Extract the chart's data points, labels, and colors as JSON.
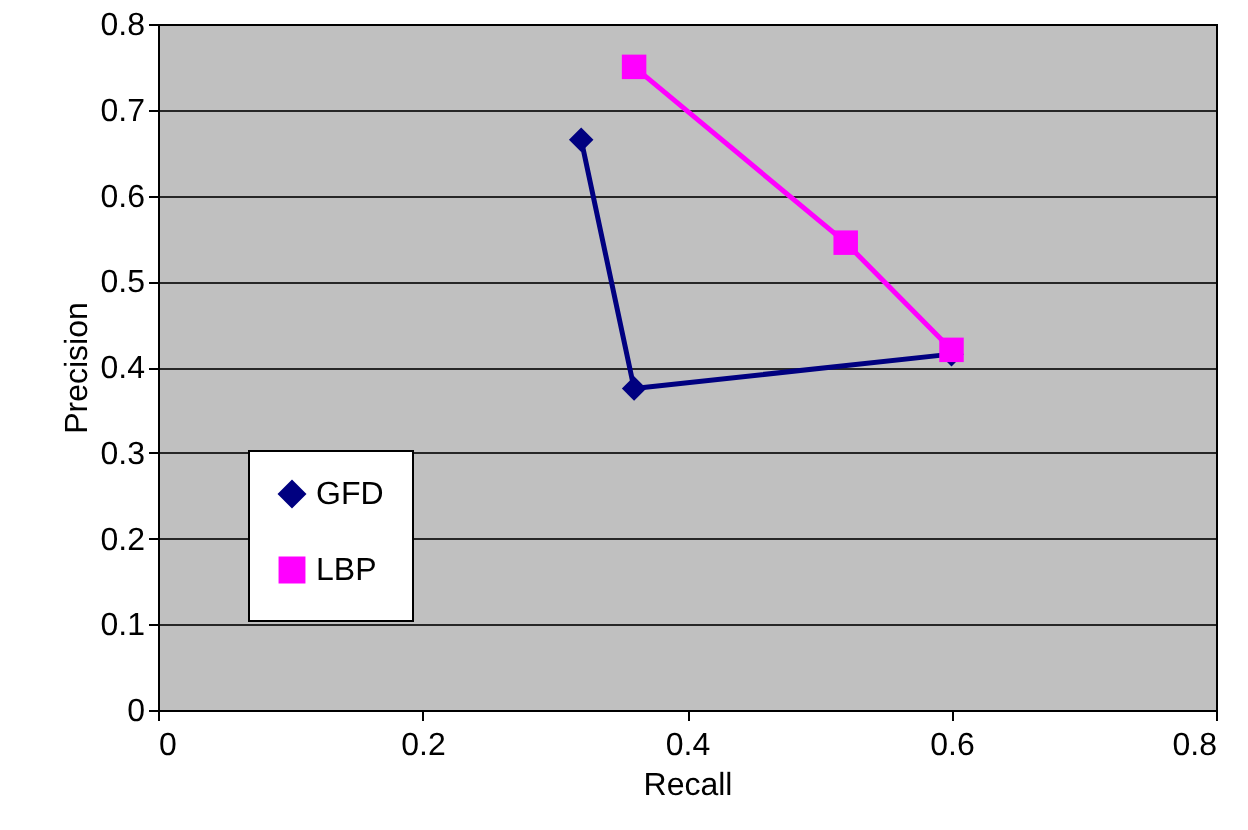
{
  "chart_data": {
    "type": "line",
    "xlabel": "Recall",
    "ylabel": "Precision",
    "xlim": [
      0,
      0.8
    ],
    "xticks": [
      0,
      0.2,
      0.4,
      0.6,
      0.8
    ],
    "ylim": [
      0,
      0.8
    ],
    "yticks": [
      0,
      0.1,
      0.2,
      0.3,
      0.4,
      0.5,
      0.6,
      0.7,
      0.8
    ],
    "grid": "y",
    "legend": "bottom left",
    "line_style": "solid",
    "series": [
      {
        "name": "GFD",
        "color": "#000080",
        "marker": "diamond",
        "x": [
          0.32,
          0.36,
          0.6
        ],
        "values": [
          0.665,
          0.375,
          0.415
        ]
      },
      {
        "name": "LBP",
        "color": "#ff00ff",
        "marker": "square",
        "x": [
          0.36,
          0.52,
          0.6
        ],
        "values": [
          0.75,
          0.545,
          0.42
        ]
      }
    ]
  }
}
